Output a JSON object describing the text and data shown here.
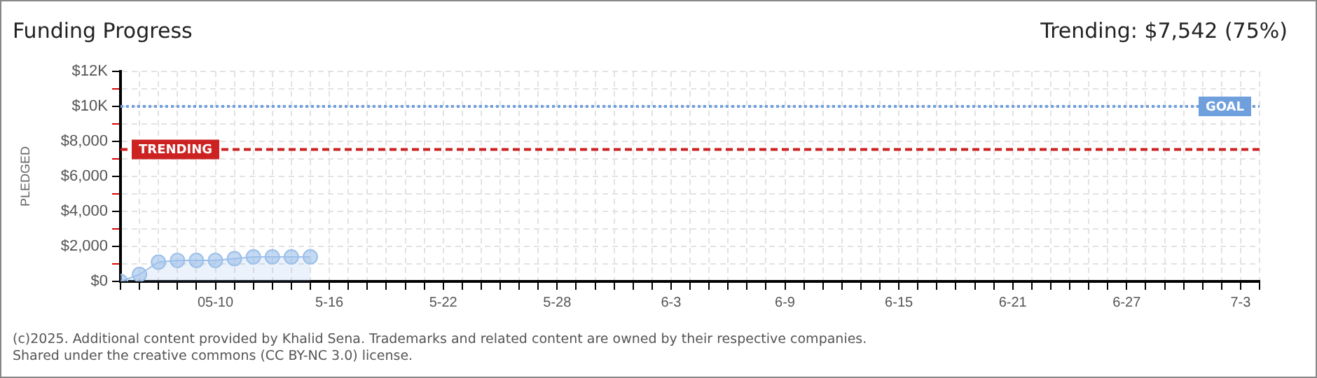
{
  "chart_data": {
    "type": "area",
    "title": "Funding Progress",
    "subtitle": "Trending: $7,542 (75%)",
    "ylabel": "PLEDGED",
    "x": [
      "--05-05",
      "--05-06",
      "--05-07",
      "--05-08",
      "--05-09",
      "--05-10",
      "--05-11",
      "--05-12",
      "--05-13",
      "--05-14",
      "--05-15"
    ],
    "series": [
      {
        "color": "#9cc0ea",
        "values": [
          0,
          400,
          1100,
          1200,
          1200,
          1200,
          1300,
          1400,
          1400,
          1400,
          1400
        ]
      }
    ],
    "marker": "circle",
    "grid": true,
    "legend": false,
    "xlim": [
      "--05-05",
      "--07-04"
    ],
    "xticks": [
      {
        "value": "--05-05",
        "label": null
      },
      {
        "value": "--05-06",
        "label": null
      },
      {
        "value": "--05-07",
        "label": null
      },
      {
        "value": "--05-08",
        "label": null
      },
      {
        "value": "--05-09",
        "label": null
      },
      {
        "value": "--05-10",
        "label": "05-10"
      },
      {
        "value": "--05-11",
        "label": null
      },
      {
        "value": "--05-12",
        "label": null
      },
      {
        "value": "--05-13",
        "label": null
      },
      {
        "value": "--05-14",
        "label": null
      },
      {
        "value": "--05-15",
        "label": null
      },
      {
        "value": "--05-16",
        "label": "5-16"
      },
      {
        "value": "--05-17",
        "label": null
      },
      {
        "value": "--05-18",
        "label": null
      },
      {
        "value": "--05-19",
        "label": null
      },
      {
        "value": "--05-20",
        "label": null
      },
      {
        "value": "--05-21",
        "label": null
      },
      {
        "value": "--05-22",
        "label": "5-22"
      },
      {
        "value": "--05-23",
        "label": null
      },
      {
        "value": "--05-24",
        "label": null
      },
      {
        "value": "--05-25",
        "label": null
      },
      {
        "value": "--05-26",
        "label": null
      },
      {
        "value": "--05-27",
        "label": null
      },
      {
        "value": "--05-28",
        "label": "5-28"
      },
      {
        "value": "--05-29",
        "label": null
      },
      {
        "value": "--05-30",
        "label": null
      },
      {
        "value": "--05-31",
        "label": null
      },
      {
        "value": "--06-01",
        "label": null
      },
      {
        "value": "--06-02",
        "label": null
      },
      {
        "value": "--06-03",
        "label": "6-3"
      },
      {
        "value": "--06-04",
        "label": null
      },
      {
        "value": "--06-05",
        "label": null
      },
      {
        "value": "--06-06",
        "label": null
      },
      {
        "value": "--06-07",
        "label": null
      },
      {
        "value": "--06-08",
        "label": null
      },
      {
        "value": "--06-09",
        "label": "6-9"
      },
      {
        "value": "--06-10",
        "label": null
      },
      {
        "value": "--06-11",
        "label": null
      },
      {
        "value": "--06-12",
        "label": null
      },
      {
        "value": "--06-13",
        "label": null
      },
      {
        "value": "--06-14",
        "label": null
      },
      {
        "value": "--06-15",
        "label": "6-15"
      },
      {
        "value": "--06-16",
        "label": null
      },
      {
        "value": "--06-17",
        "label": null
      },
      {
        "value": "--06-18",
        "label": null
      },
      {
        "value": "--06-19",
        "label": null
      },
      {
        "value": "--06-20",
        "label": null
      },
      {
        "value": "--06-21",
        "label": "6-21"
      },
      {
        "value": "--06-22",
        "label": null
      },
      {
        "value": "--06-23",
        "label": null
      },
      {
        "value": "--06-24",
        "label": null
      },
      {
        "value": "--06-25",
        "label": null
      },
      {
        "value": "--06-26",
        "label": null
      },
      {
        "value": "--06-27",
        "label": "6-27"
      },
      {
        "value": "--06-28",
        "label": null
      },
      {
        "value": "--06-29",
        "label": null
      },
      {
        "value": "--06-30",
        "label": null
      },
      {
        "value": "--07-01",
        "label": null
      },
      {
        "value": "--07-02",
        "label": null
      },
      {
        "value": "--07-03",
        "label": "7-3"
      },
      {
        "value": "--07-04",
        "label": null
      }
    ],
    "ylim": [
      0,
      12000
    ],
    "yticks": [
      {
        "value": 0,
        "label": "$0"
      },
      {
        "value": 1000,
        "label": null
      },
      {
        "value": 2000,
        "label": "$2,000"
      },
      {
        "value": 3000,
        "label": null
      },
      {
        "value": 4000,
        "label": "$4,000"
      },
      {
        "value": 5000,
        "label": null
      },
      {
        "value": 6000,
        "label": "$6,000"
      },
      {
        "value": 7000,
        "label": null
      },
      {
        "value": 8000,
        "label": "$8,000"
      },
      {
        "value": 9000,
        "label": null
      },
      {
        "value": 10000,
        "label": "$10K"
      },
      {
        "value": 11000,
        "label": null
      },
      {
        "value": 12000,
        "label": "$12K"
      }
    ],
    "ref_lines": [
      {
        "axis": "y",
        "value": 10000,
        "label": "GOAL",
        "color": "#6f9fdc",
        "line_style": "dotted"
      },
      {
        "axis": "y",
        "value": 7542,
        "label": "TRENDING",
        "color": "#cc2222",
        "line_style": "dashed"
      }
    ],
    "annotations": [
      "(c)2025. Additional content provided by Khalid Sena. Trademarks and related content are owned by their respective companies.",
      "Shared under the creative commons (CC BY-NC 3.0) license."
    ]
  }
}
